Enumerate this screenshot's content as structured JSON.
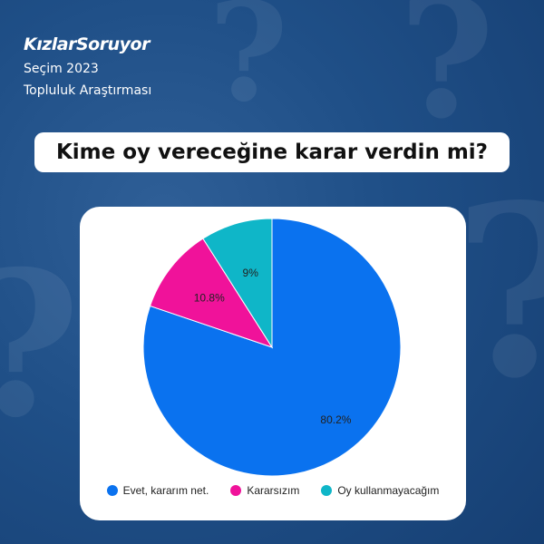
{
  "header": {
    "logo": "KızlarSoruyor",
    "subtitle1": "Seçim 2023",
    "subtitle2": "Topluluk Araştırması"
  },
  "chart_data": {
    "type": "pie",
    "title": "Kime oy vereceğine karar verdin mi?",
    "categories": [
      "Evet, kararım net.",
      "Kararsızım",
      "Oy kullanmayacağım"
    ],
    "values": [
      80.2,
      10.8,
      9
    ],
    "labels": [
      "80.2%",
      "10.8%",
      "9%"
    ],
    "colors": [
      "#0a72ef",
      "#f0129a",
      "#0fb6c8"
    ],
    "legend_position": "bottom",
    "start": "top",
    "direction": "clockwise"
  }
}
